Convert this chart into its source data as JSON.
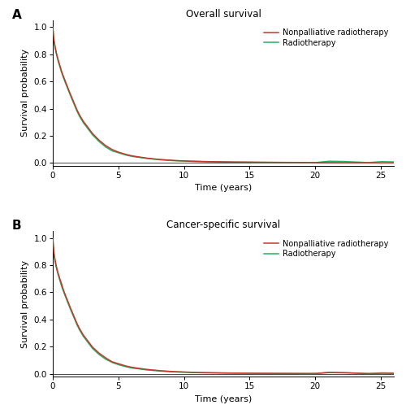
{
  "panel_A_title": "Overall survival",
  "panel_B_title": "Cancer-specific survival",
  "xlabel": "Time (years)",
  "ylabel": "Survival probability",
  "panel_A_label": "A",
  "panel_B_label": "B",
  "legend_labels": [
    "Nonpalliative radiotherapy",
    "Radiotherapy"
  ],
  "color_nonpalliative": "#c0392b",
  "color_radiotherapy": "#27ae60",
  "xlim": [
    0,
    26
  ],
  "ylim": [
    -0.02,
    1.05
  ],
  "yticks": [
    0.0,
    0.2,
    0.4,
    0.6,
    0.8,
    1.0
  ],
  "xticks": [
    0,
    5,
    10,
    15,
    20,
    25
  ],
  "linewidth": 1.1,
  "background_color": "#ffffff",
  "os_nonpal_x": [
    0,
    0.08,
    0.15,
    0.25,
    0.35,
    0.5,
    0.65,
    0.8,
    1.0,
    1.2,
    1.5,
    1.8,
    2.0,
    2.3,
    2.7,
    3.0,
    3.5,
    4.0,
    4.5,
    5.0,
    5.5,
    6.0,
    7.0,
    8.0,
    9.0,
    10.0,
    11.0,
    12.0,
    13.0,
    14.0,
    15.0,
    16.0,
    17.0,
    18.0,
    19.0,
    20.0,
    21.0,
    22.0,
    23.0,
    24.0,
    25.0,
    26.0
  ],
  "os_nonpal_y": [
    1.0,
    0.91,
    0.87,
    0.82,
    0.78,
    0.73,
    0.68,
    0.64,
    0.59,
    0.54,
    0.47,
    0.4,
    0.36,
    0.31,
    0.26,
    0.22,
    0.17,
    0.13,
    0.1,
    0.08,
    0.065,
    0.053,
    0.038,
    0.027,
    0.02,
    0.015,
    0.012,
    0.01,
    0.008,
    0.007,
    0.006,
    0.005,
    0.005,
    0.004,
    0.004,
    0.003,
    0.003,
    0.003,
    0.002,
    0.001,
    0.001,
    0.001
  ],
  "os_rt_x": [
    0,
    0.08,
    0.15,
    0.25,
    0.35,
    0.5,
    0.65,
    0.8,
    1.0,
    1.2,
    1.5,
    1.8,
    2.0,
    2.3,
    2.7,
    3.0,
    3.5,
    4.0,
    4.5,
    5.0,
    5.5,
    6.0,
    7.0,
    8.0,
    9.0,
    10.0,
    11.0,
    12.0,
    13.0,
    14.0,
    15.0,
    16.0,
    17.0,
    18.0,
    19.0,
    20.0,
    21.0,
    22.0,
    23.0,
    24.0,
    25.0,
    26.0
  ],
  "os_rt_y": [
    1.0,
    0.9,
    0.86,
    0.81,
    0.77,
    0.72,
    0.67,
    0.63,
    0.58,
    0.53,
    0.46,
    0.39,
    0.35,
    0.3,
    0.25,
    0.21,
    0.16,
    0.12,
    0.09,
    0.075,
    0.06,
    0.049,
    0.035,
    0.025,
    0.018,
    0.014,
    0.011,
    0.009,
    0.007,
    0.006,
    0.005,
    0.005,
    0.004,
    0.004,
    0.003,
    0.003,
    0.013,
    0.012,
    0.008,
    0.003,
    0.01,
    0.008
  ],
  "css_nonpal_x": [
    0,
    0.08,
    0.15,
    0.25,
    0.35,
    0.5,
    0.65,
    0.8,
    1.0,
    1.2,
    1.5,
    1.8,
    2.0,
    2.3,
    2.7,
    3.0,
    3.5,
    4.0,
    4.5,
    5.0,
    5.5,
    6.0,
    7.0,
    8.0,
    9.0,
    10.0,
    11.0,
    12.0,
    13.0,
    14.0,
    15.0,
    16.0,
    17.0,
    18.0,
    19.0,
    20.0,
    21.0,
    22.0,
    23.0,
    24.0,
    25.0,
    26.0
  ],
  "css_nonpal_y": [
    1.0,
    0.9,
    0.85,
    0.8,
    0.76,
    0.71,
    0.67,
    0.62,
    0.57,
    0.52,
    0.45,
    0.38,
    0.34,
    0.29,
    0.24,
    0.2,
    0.155,
    0.12,
    0.09,
    0.075,
    0.06,
    0.049,
    0.035,
    0.025,
    0.018,
    0.014,
    0.011,
    0.009,
    0.007,
    0.006,
    0.005,
    0.005,
    0.004,
    0.004,
    0.003,
    0.003,
    0.012,
    0.01,
    0.007,
    0.002,
    0.005,
    0.004
  ],
  "css_rt_x": [
    0,
    0.08,
    0.15,
    0.25,
    0.35,
    0.5,
    0.65,
    0.8,
    1.0,
    1.2,
    1.5,
    1.8,
    2.0,
    2.3,
    2.7,
    3.0,
    3.5,
    4.0,
    4.5,
    5.0,
    5.5,
    6.0,
    7.0,
    8.0,
    9.0,
    10.0,
    11.0,
    12.0,
    13.0,
    14.0,
    15.0,
    16.0,
    17.0,
    18.0,
    19.0,
    20.0,
    21.0,
    22.0,
    23.0,
    24.0,
    25.0,
    26.0
  ],
  "css_rt_y": [
    1.0,
    0.88,
    0.84,
    0.79,
    0.75,
    0.7,
    0.65,
    0.61,
    0.56,
    0.51,
    0.44,
    0.37,
    0.33,
    0.28,
    0.23,
    0.19,
    0.145,
    0.11,
    0.085,
    0.068,
    0.055,
    0.044,
    0.031,
    0.022,
    0.016,
    0.012,
    0.009,
    0.008,
    0.006,
    0.005,
    0.004,
    0.004,
    0.003,
    0.003,
    0.003,
    0.002,
    0.01,
    0.009,
    0.006,
    0.002,
    0.008,
    0.006
  ]
}
